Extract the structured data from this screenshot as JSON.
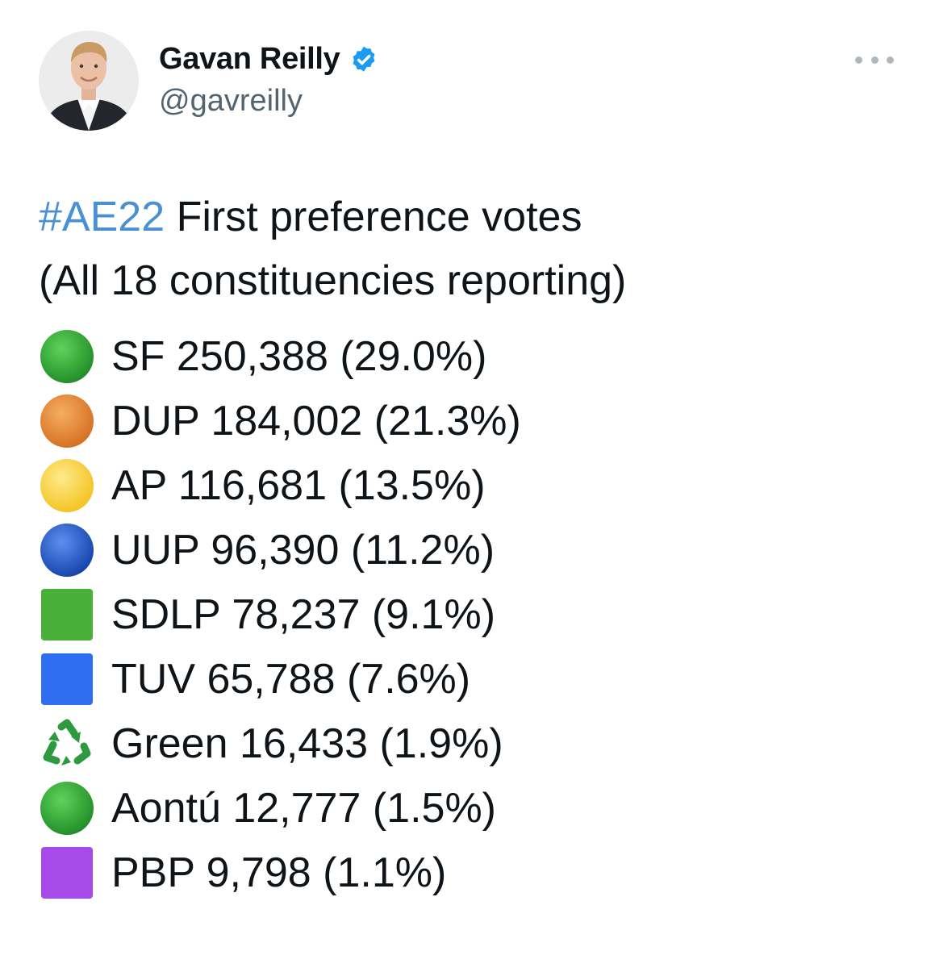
{
  "author": {
    "display_name": "Gavan Reilly",
    "handle": "@gavreilly",
    "verified_icon": "verified-badge-icon",
    "more_icon": "more-options-icon"
  },
  "tweet": {
    "hashtag": "#AE22",
    "line1_rest": " First preference votes",
    "line2": "(All 18 constituencies reporting)"
  },
  "results": [
    {
      "party": "SF",
      "votes": "250,388",
      "pct": "(29.0%)",
      "icon": "green-circle-icon",
      "color": "#27a22e"
    },
    {
      "party": "DUP",
      "votes": "184,002",
      "pct": "(21.3%)",
      "icon": "orange-circle-icon",
      "color": "#e9893a"
    },
    {
      "party": "AP",
      "votes": "116,681",
      "pct": "(13.5%)",
      "icon": "yellow-circle-icon",
      "color": "#f9d740"
    },
    {
      "party": "UUP",
      "votes": "96,390",
      "pct": "(11.2%)",
      "icon": "blue-circle-icon",
      "color": "#1d55c8"
    },
    {
      "party": "SDLP",
      "votes": "78,237",
      "pct": "(9.1%)",
      "icon": "green-square-icon",
      "color": "#49b037"
    },
    {
      "party": "TUV",
      "votes": "65,788",
      "pct": "(7.6%)",
      "icon": "blue-square-icon",
      "color": "#2f6ef1"
    },
    {
      "party": "Green",
      "votes": "16,433",
      "pct": "(1.9%)",
      "icon": "recycling-symbol-icon",
      "color": "#2e9a3f"
    },
    {
      "party": "Aontú",
      "votes": "12,777",
      "pct": "(1.5%)",
      "icon": "green-circle-icon",
      "color": "#27a22e"
    },
    {
      "party": "PBP",
      "votes": "9,798",
      "pct": "(1.1%)",
      "icon": "purple-square-icon",
      "color": "#a64bea"
    }
  ]
}
